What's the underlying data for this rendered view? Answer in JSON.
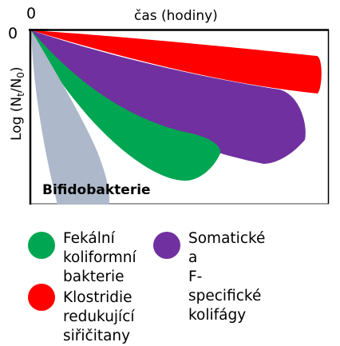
{
  "axes": {
    "x_origin": "0",
    "y_origin": "0",
    "x_label": "čas (hodiny)",
    "y_label_prefix": "Log (N",
    "y_label_sub_t": "t",
    "y_label_mid": "/N",
    "y_label_sub_0": "0",
    "y_label_suffix": ")"
  },
  "inline_label": "Bifidobakterie",
  "colors": {
    "fecal_coliforms": "#00a651",
    "clostridia": "#ff0000",
    "coliphages": "#7030a0",
    "bifidobacteria": "#adb9ca"
  },
  "legend": [
    {
      "key": "fecal_coliforms",
      "label": "Fekální\nkoliformní\nbakterie"
    },
    {
      "key": "coliphages",
      "label": "Somatické a\nF-specifické kolifágy"
    },
    {
      "key": "clostridia",
      "label": "Klostridie redukující siřičitany"
    }
  ]
}
